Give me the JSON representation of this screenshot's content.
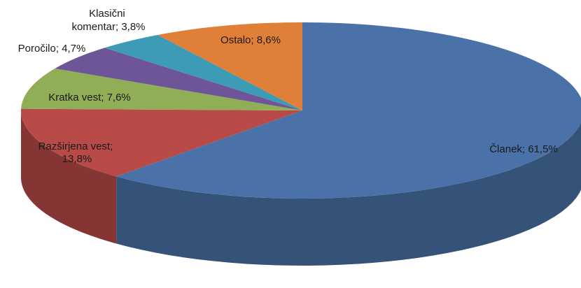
{
  "chart_data": {
    "type": "pie",
    "three_d": true,
    "title": "",
    "start_angle_note": "first slice starts at 12 o'clock, clockwise",
    "slices": [
      {
        "label": "Članek",
        "value": 61.5,
        "data_label": "Članek; 61,5%",
        "color": "#4A72A8"
      },
      {
        "label": "Razširjena vest",
        "value": 13.8,
        "data_label": "Razširjena vest; 13,8%",
        "color": "#B84A48"
      },
      {
        "label": "Kratka vest",
        "value": 7.6,
        "data_label": "Kratka vest; 7,6%",
        "color": "#8FAE55"
      },
      {
        "label": "Poročilo",
        "value": 4.7,
        "data_label": "Poročilo; 4,7%",
        "color": "#6E5598"
      },
      {
        "label": "Klasični komentar",
        "value": 3.8,
        "data_label": "Klasični komentar; 3,8%",
        "color": "#3E9BB5"
      },
      {
        "label": "Ostalo",
        "value": 8.6,
        "data_label": "Ostalo; 8,6%",
        "color": "#E07F37"
      }
    ]
  }
}
